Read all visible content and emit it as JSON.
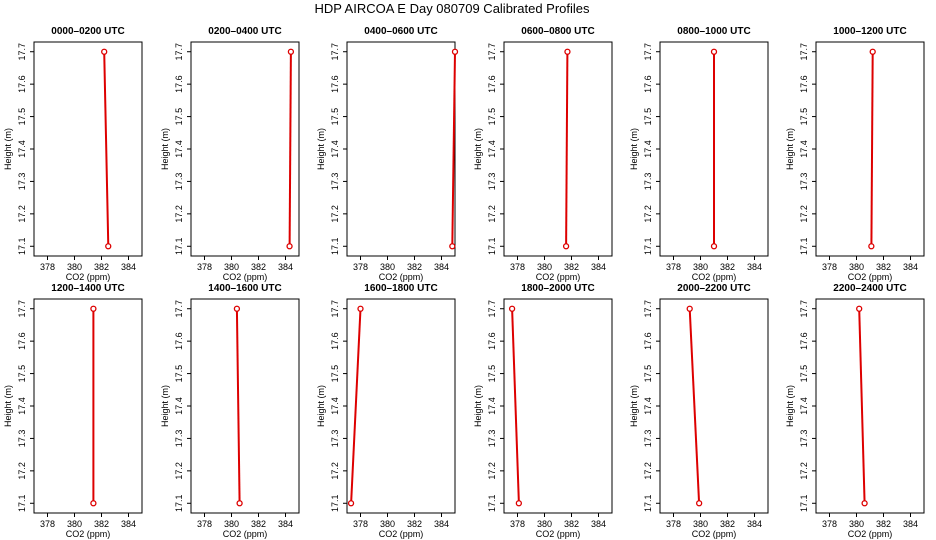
{
  "figure": {
    "title": "HDP AIRCOA E  Day 080709  Calibrated Profiles"
  },
  "colors": {
    "profile_line": "#dd0000",
    "marker": "#dd0000",
    "axes": "#000000",
    "background": "#ffffff"
  },
  "chart_data": [
    {
      "type": "line",
      "title": "0000–0200 UTC",
      "xlabel": "CO2 (ppm)",
      "ylabel": "Height (m)",
      "xlim": [
        377,
        385
      ],
      "ylim": [
        17.07,
        17.73
      ],
      "xticks": [
        378,
        380,
        382,
        384
      ],
      "yticks": [
        17.1,
        17.2,
        17.3,
        17.4,
        17.5,
        17.6,
        17.7
      ],
      "grid": false,
      "series": [
        {
          "x": [
            382.2,
            382.5
          ],
          "y": [
            17.7,
            17.1
          ]
        }
      ]
    },
    {
      "type": "line",
      "title": "0200–0400 UTC",
      "xlabel": "CO2 (ppm)",
      "ylabel": "Height (m)",
      "xlim": [
        377,
        385
      ],
      "ylim": [
        17.07,
        17.73
      ],
      "xticks": [
        378,
        380,
        382,
        384
      ],
      "yticks": [
        17.1,
        17.2,
        17.3,
        17.4,
        17.5,
        17.6,
        17.7
      ],
      "grid": false,
      "series": [
        {
          "x": [
            384.4,
            384.3
          ],
          "y": [
            17.7,
            17.1
          ]
        }
      ]
    },
    {
      "type": "line",
      "title": "0400–0600 UTC",
      "xlabel": "CO2 (ppm)",
      "ylabel": "Height (m)",
      "xlim": [
        377,
        385
      ],
      "ylim": [
        17.07,
        17.73
      ],
      "xticks": [
        378,
        380,
        382,
        384
      ],
      "yticks": [
        17.1,
        17.2,
        17.3,
        17.4,
        17.5,
        17.6,
        17.7
      ],
      "grid": false,
      "series": [
        {
          "x": [
            385.0,
            384.8
          ],
          "y": [
            17.7,
            17.1
          ]
        }
      ]
    },
    {
      "type": "line",
      "title": "0600–0800 UTC",
      "xlabel": "CO2 (ppm)",
      "ylabel": "Height (m)",
      "xlim": [
        377,
        385
      ],
      "ylim": [
        17.07,
        17.73
      ],
      "xticks": [
        378,
        380,
        382,
        384
      ],
      "yticks": [
        17.1,
        17.2,
        17.3,
        17.4,
        17.5,
        17.6,
        17.7
      ],
      "grid": false,
      "series": [
        {
          "x": [
            381.7,
            381.6
          ],
          "y": [
            17.7,
            17.1
          ]
        }
      ]
    },
    {
      "type": "line",
      "title": "0800–1000 UTC",
      "xlabel": "CO2 (ppm)",
      "ylabel": "Height (m)",
      "xlim": [
        377,
        385
      ],
      "ylim": [
        17.07,
        17.73
      ],
      "xticks": [
        378,
        380,
        382,
        384
      ],
      "yticks": [
        17.1,
        17.2,
        17.3,
        17.4,
        17.5,
        17.6,
        17.7
      ],
      "grid": false,
      "series": [
        {
          "x": [
            381.0,
            381.0
          ],
          "y": [
            17.7,
            17.1
          ]
        }
      ]
    },
    {
      "type": "line",
      "title": "1000–1200 UTC",
      "xlabel": "CO2 (ppm)",
      "ylabel": "Height (m)",
      "xlim": [
        377,
        385
      ],
      "ylim": [
        17.07,
        17.73
      ],
      "xticks": [
        378,
        380,
        382,
        384
      ],
      "yticks": [
        17.1,
        17.2,
        17.3,
        17.4,
        17.5,
        17.6,
        17.7
      ],
      "grid": false,
      "series": [
        {
          "x": [
            381.2,
            381.1
          ],
          "y": [
            17.7,
            17.1
          ]
        }
      ]
    },
    {
      "type": "line",
      "title": "1200–1400 UTC",
      "xlabel": "CO2 (ppm)",
      "ylabel": "Height (m)",
      "xlim": [
        377,
        385
      ],
      "ylim": [
        17.07,
        17.73
      ],
      "xticks": [
        378,
        380,
        382,
        384
      ],
      "yticks": [
        17.1,
        17.2,
        17.3,
        17.4,
        17.5,
        17.6,
        17.7
      ],
      "grid": false,
      "series": [
        {
          "x": [
            381.4,
            381.4
          ],
          "y": [
            17.7,
            17.1
          ]
        }
      ]
    },
    {
      "type": "line",
      "title": "1400–1600 UTC",
      "xlabel": "CO2 (ppm)",
      "ylabel": "Height (m)",
      "xlim": [
        377,
        385
      ],
      "ylim": [
        17.07,
        17.73
      ],
      "xticks": [
        378,
        380,
        382,
        384
      ],
      "yticks": [
        17.1,
        17.2,
        17.3,
        17.4,
        17.5,
        17.6,
        17.7
      ],
      "grid": false,
      "series": [
        {
          "x": [
            380.4,
            380.6
          ],
          "y": [
            17.7,
            17.1
          ]
        }
      ]
    },
    {
      "type": "line",
      "title": "1600–1800 UTC",
      "xlabel": "CO2 (ppm)",
      "ylabel": "Height (m)",
      "xlim": [
        377,
        385
      ],
      "ylim": [
        17.07,
        17.73
      ],
      "xticks": [
        378,
        380,
        382,
        384
      ],
      "yticks": [
        17.1,
        17.2,
        17.3,
        17.4,
        17.5,
        17.6,
        17.7
      ],
      "grid": false,
      "series": [
        {
          "x": [
            378.0,
            377.3
          ],
          "y": [
            17.7,
            17.1
          ]
        }
      ]
    },
    {
      "type": "line",
      "title": "1800–2000 UTC",
      "xlabel": "CO2 (ppm)",
      "ylabel": "Height (m)",
      "xlim": [
        377,
        385
      ],
      "ylim": [
        17.07,
        17.73
      ],
      "xticks": [
        378,
        380,
        382,
        384
      ],
      "yticks": [
        17.1,
        17.2,
        17.3,
        17.4,
        17.5,
        17.6,
        17.7
      ],
      "grid": false,
      "series": [
        {
          "x": [
            377.6,
            378.1
          ],
          "y": [
            17.7,
            17.1
          ]
        }
      ]
    },
    {
      "type": "line",
      "title": "2000–2200 UTC",
      "xlabel": "CO2 (ppm)",
      "ylabel": "Height (m)",
      "xlim": [
        377,
        385
      ],
      "ylim": [
        17.07,
        17.73
      ],
      "xticks": [
        378,
        380,
        382,
        384
      ],
      "yticks": [
        17.1,
        17.2,
        17.3,
        17.4,
        17.5,
        17.6,
        17.7
      ],
      "grid": false,
      "series": [
        {
          "x": [
            379.2,
            379.9
          ],
          "y": [
            17.7,
            17.1
          ]
        }
      ]
    },
    {
      "type": "line",
      "title": "2200–2400 UTC",
      "xlabel": "CO2 (ppm)",
      "ylabel": "Height (m)",
      "xlim": [
        377,
        385
      ],
      "ylim": [
        17.07,
        17.73
      ],
      "xticks": [
        378,
        380,
        382,
        384
      ],
      "yticks": [
        17.1,
        17.2,
        17.3,
        17.4,
        17.5,
        17.6,
        17.7
      ],
      "grid": false,
      "series": [
        {
          "x": [
            380.2,
            380.6
          ],
          "y": [
            17.7,
            17.1
          ]
        }
      ]
    }
  ]
}
